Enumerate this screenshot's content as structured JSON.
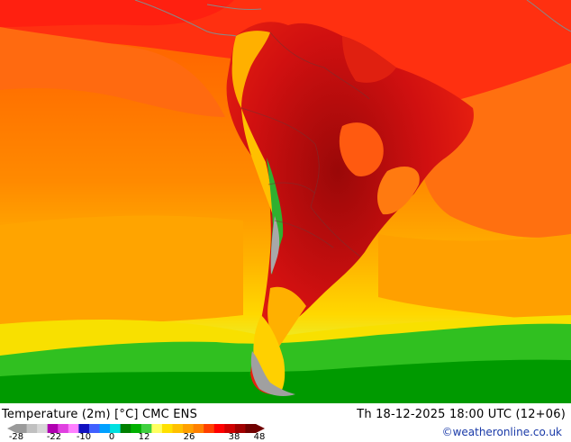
{
  "map": {
    "title": "Temperature (2m) [°C] CMC ENS",
    "datetime": "Th 18-12-2025 18:00 UTC (12+06)",
    "credit": "©weatheronline.co.uk",
    "region": "South America",
    "legend": {
      "ticks": [
        "-28",
        "-22",
        "-10",
        "0",
        "12",
        "26",
        "38",
        "48"
      ],
      "colors": [
        "#9a9a9a",
        "#c0c0c0",
        "#d7d7d7",
        "#b000b0",
        "#e040e0",
        "#ff80ff",
        "#1010c0",
        "#4060ff",
        "#00a0ff",
        "#00e0e0",
        "#008000",
        "#00b000",
        "#40d040",
        "#ffff60",
        "#ffe000",
        "#ffc000",
        "#ffa000",
        "#ff8000",
        "#ff4000",
        "#ff0000",
        "#d00000",
        "#a00000",
        "#700000"
      ]
    },
    "colors": {
      "hot_dark": "#8b0a0a",
      "hot": "#e81010",
      "warm": "#ff6a00",
      "mild": "#ffb000",
      "cool": "#ffe020",
      "cold": "#10c010",
      "andes": "#b0b0b0"
    }
  }
}
